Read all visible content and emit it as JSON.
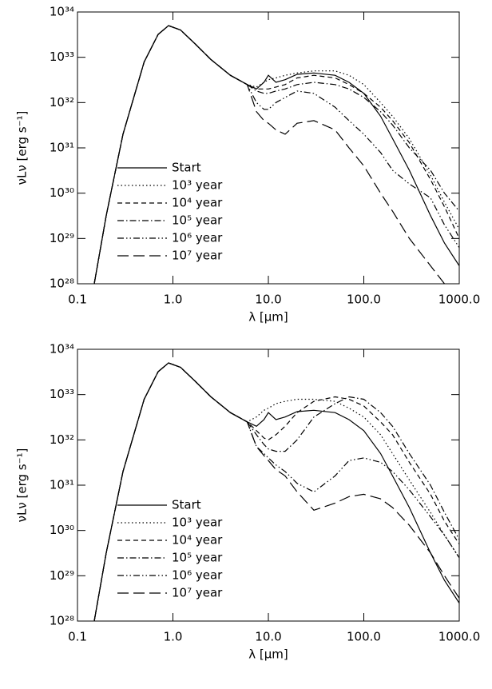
{
  "chart_data": [
    {
      "type": "line",
      "xlabel": "λ [μm]",
      "ylabel": "νLν [erg s⁻¹]",
      "log_x": true,
      "log_y": true,
      "legend": "lower left",
      "xlim": [
        0.1,
        1000
      ],
      "ylim": [
        1e+28,
        1e+34
      ],
      "xticks": [
        0.1,
        {
          "value": 1,
          "label": "1.0"
        },
        {
          "value": 10,
          "label": "10.0"
        },
        {
          "value": 100,
          "label": "100.0"
        },
        {
          "value": 1000,
          "label": "1000.0"
        }
      ],
      "yticks": [
        {
          "value": 1e+28,
          "label": "10²⁸"
        },
        {
          "value": 1e+29,
          "label": "10²⁹"
        },
        {
          "value": 1e+30,
          "label": "10³⁰"
        },
        {
          "value": 1e+31,
          "label": "10³¹"
        },
        {
          "value": 1e+32,
          "label": "10³²"
        },
        {
          "value": 1e+33,
          "label": "10³³"
        },
        {
          "value": 1e+34,
          "label": "10³⁴"
        }
      ],
      "x": [
        0.15,
        0.2,
        0.3,
        0.5,
        0.7,
        0.9,
        1.2,
        1.7,
        2.5,
        4,
        6,
        7.5,
        9,
        10,
        12,
        15,
        20,
        30,
        50,
        70,
        100,
        150,
        200,
        300,
        500,
        700,
        1000
      ],
      "series": [
        {
          "name": "Start",
          "color": "#000000",
          "linestyle": "solid",
          "values": [
            1e+28,
            3.2e+29,
            2e+31,
            7.9e+32,
            3.2e+33,
            5e+33,
            4e+33,
            2e+33,
            8.9e+32,
            4e+32,
            2.5e+32,
            2e+32,
            2.8e+32,
            4e+32,
            2.8e+32,
            3.2e+32,
            4.2e+32,
            4.5e+32,
            4e+32,
            2.8e+32,
            1.6e+32,
            5e+31,
            1.6e+31,
            3.2e+30,
            3.2e+29,
            7.9e+28,
            2.5e+28
          ]
        },
        {
          "name": "10³ year",
          "color": "#000000",
          "linestyle": "dotted",
          "values": [
            1e+28,
            3.2e+29,
            2e+31,
            7.9e+32,
            3.2e+33,
            5e+33,
            4e+33,
            2e+33,
            8.9e+32,
            4e+32,
            2.5e+32,
            2.2e+32,
            2.8e+32,
            3.2e+32,
            3.5e+32,
            4e+32,
            4.5e+32,
            5e+32,
            5e+32,
            4e+32,
            2.5e+32,
            1e+32,
            5e+31,
            1.6e+31,
            2.5e+30,
            6.3e+29,
            1.6e+29
          ]
        },
        {
          "name": "10⁴ year",
          "color": "#000000",
          "linestyle": "dashed",
          "values": [
            1e+28,
            3.2e+29,
            2e+31,
            7.9e+32,
            3.2e+33,
            5e+33,
            4e+33,
            2e+33,
            8.9e+32,
            4e+32,
            2.5e+32,
            2e+32,
            2e+32,
            2e+32,
            2.2e+32,
            2.5e+32,
            3.5e+32,
            4e+32,
            3.5e+32,
            2.5e+32,
            1.6e+32,
            7.9e+31,
            4e+31,
            1.3e+31,
            2e+30,
            5e+29,
            1e+29
          ]
        },
        {
          "name": "10⁵ year",
          "color": "#000000",
          "linestyle": "dashdot",
          "values": [
            1e+28,
            3.2e+29,
            2e+31,
            7.9e+32,
            3.2e+33,
            5e+33,
            4e+33,
            2e+33,
            8.9e+32,
            4e+32,
            2.5e+32,
            1.8e+32,
            1.6e+32,
            1.6e+32,
            1.8e+32,
            2e+32,
            2.5e+32,
            2.8e+32,
            2.5e+32,
            2e+32,
            1.3e+32,
            6.3e+31,
            3.2e+31,
            1e+31,
            3.2e+30,
            1e+30,
            4e+29
          ]
        },
        {
          "name": "10⁶ year",
          "color": "#000000",
          "linestyle": "dashdotdot",
          "values": [
            1e+28,
            3.2e+29,
            2e+31,
            7.9e+32,
            3.2e+33,
            5e+33,
            4e+33,
            2e+33,
            8.9e+32,
            4e+32,
            2.5e+32,
            1e+32,
            7.1e+31,
            7.1e+31,
            1e+32,
            1.3e+32,
            1.8e+32,
            1.6e+32,
            7.9e+31,
            4e+31,
            2e+31,
            7.9e+30,
            3.2e+30,
            1.6e+30,
            7.9e+29,
            2e+29,
            6.3e+28
          ]
        },
        {
          "name": "10⁷ year",
          "color": "#000000",
          "linestyle": "longdash",
          "values": [
            1e+28,
            3.2e+29,
            2e+31,
            7.9e+32,
            3.2e+33,
            5e+33,
            4e+33,
            2e+33,
            8.9e+32,
            4e+32,
            2.5e+32,
            6.3e+31,
            4e+31,
            3.5e+31,
            2.5e+31,
            2e+31,
            3.5e+31,
            4e+31,
            2.5e+31,
            1e+31,
            4e+30,
            1e+30,
            4e+29,
            1e+29,
            2.5e+28,
            1e+28,
            null
          ]
        }
      ]
    },
    {
      "type": "line",
      "xlabel": "λ [μm]",
      "ylabel": "νLν [erg s⁻¹]",
      "log_x": true,
      "log_y": true,
      "legend": "lower left",
      "xlim": [
        0.1,
        1000
      ],
      "ylim": [
        1e+28,
        1e+34
      ],
      "xticks": [
        0.1,
        {
          "value": 1,
          "label": "1.0"
        },
        {
          "value": 10,
          "label": "10.0"
        },
        {
          "value": 100,
          "label": "100.0"
        },
        {
          "value": 1000,
          "label": "1000.0"
        }
      ],
      "yticks": [
        {
          "value": 1e+28,
          "label": "10²⁸"
        },
        {
          "value": 1e+29,
          "label": "10²⁹"
        },
        {
          "value": 1e+30,
          "label": "10³⁰"
        },
        {
          "value": 1e+31,
          "label": "10³¹"
        },
        {
          "value": 1e+32,
          "label": "10³²"
        },
        {
          "value": 1e+33,
          "label": "10³³"
        },
        {
          "value": 1e+34,
          "label": "10³⁴"
        }
      ],
      "x": [
        0.15,
        0.2,
        0.3,
        0.5,
        0.7,
        0.9,
        1.2,
        1.7,
        2.5,
        4,
        6,
        7.5,
        9,
        10,
        12,
        15,
        20,
        30,
        50,
        70,
        100,
        150,
        200,
        300,
        500,
        700,
        1000
      ],
      "series": [
        {
          "name": "Start",
          "color": "#000000",
          "linestyle": "solid",
          "values": [
            1e+28,
            3.2e+29,
            2e+31,
            7.9e+32,
            3.2e+33,
            5e+33,
            4e+33,
            2e+33,
            8.9e+32,
            4e+32,
            2.5e+32,
            2e+32,
            2.8e+32,
            4e+32,
            2.8e+32,
            3.2e+32,
            4.2e+32,
            4.5e+32,
            4e+32,
            2.8e+32,
            1.6e+32,
            5e+31,
            1.6e+31,
            3.2e+30,
            3.2e+29,
            7.9e+28,
            2.5e+28
          ]
        },
        {
          "name": "10³ year",
          "color": "#000000",
          "linestyle": "dotted",
          "values": [
            1e+28,
            3.2e+29,
            2e+31,
            7.9e+32,
            3.2e+33,
            5e+33,
            4e+33,
            2e+33,
            8.9e+32,
            4e+32,
            2.5e+32,
            3.2e+32,
            4.5e+32,
            5e+32,
            6.3e+32,
            7.1e+32,
            7.9e+32,
            7.9e+32,
            7.1e+32,
            5e+32,
            3.2e+32,
            1.3e+32,
            5e+31,
            1.3e+31,
            2.5e+30,
            7.9e+29,
            2.5e+29
          ]
        },
        {
          "name": "10⁴ year",
          "color": "#000000",
          "linestyle": "dashed",
          "values": [
            1e+28,
            3.2e+29,
            2e+31,
            7.9e+32,
            3.2e+33,
            5e+33,
            4e+33,
            2e+33,
            8.9e+32,
            4e+32,
            2.5e+32,
            1.6e+32,
            1.1e+32,
            1e+32,
            1.3e+32,
            2e+32,
            4e+32,
            7.1e+32,
            8.9e+32,
            7.9e+32,
            5.6e+32,
            2.5e+32,
            1.3e+32,
            3.2e+31,
            6.3e+30,
            1.6e+30,
            5e+29
          ]
        },
        {
          "name": "10⁵ year",
          "color": "#000000",
          "linestyle": "dashdot",
          "values": [
            1e+28,
            3.2e+29,
            2e+31,
            7.9e+32,
            3.2e+33,
            5e+33,
            4e+33,
            2e+33,
            8.9e+32,
            4e+32,
            2.5e+32,
            1.3e+32,
            7.9e+31,
            6.3e+31,
            5.6e+31,
            5.6e+31,
            1e+32,
            3.2e+32,
            6.3e+32,
            8.9e+32,
            7.9e+32,
            4e+32,
            2e+32,
            5e+31,
            1e+31,
            2.5e+30,
            6.3e+29
          ]
        },
        {
          "name": "10⁶ year",
          "color": "#000000",
          "linestyle": "dashdotdot",
          "values": [
            1e+28,
            3.2e+29,
            2e+31,
            7.9e+32,
            3.2e+33,
            5e+33,
            4e+33,
            2e+33,
            8.9e+32,
            4e+32,
            2.5e+32,
            7.1e+31,
            5e+31,
            4e+31,
            2.8e+31,
            2e+31,
            1.1e+31,
            7.1e+30,
            1.6e+31,
            3.5e+31,
            4e+31,
            3.2e+31,
            2e+31,
            7.9e+30,
            2e+30,
            7.9e+29,
            2.5e+29
          ]
        },
        {
          "name": "10⁷ year",
          "color": "#000000",
          "linestyle": "longdash",
          "values": [
            1e+28,
            3.2e+29,
            2e+31,
            7.9e+32,
            3.2e+33,
            5e+33,
            4e+33,
            2e+33,
            8.9e+32,
            4e+32,
            2.5e+32,
            7.1e+31,
            4.5e+31,
            3.5e+31,
            2.2e+31,
            1.6e+31,
            7.1e+30,
            2.8e+30,
            4e+30,
            5.6e+30,
            6.3e+30,
            5e+30,
            3.2e+30,
            1.3e+30,
            3.2e+29,
            1e+29,
            3.2e+28
          ]
        }
      ]
    }
  ]
}
